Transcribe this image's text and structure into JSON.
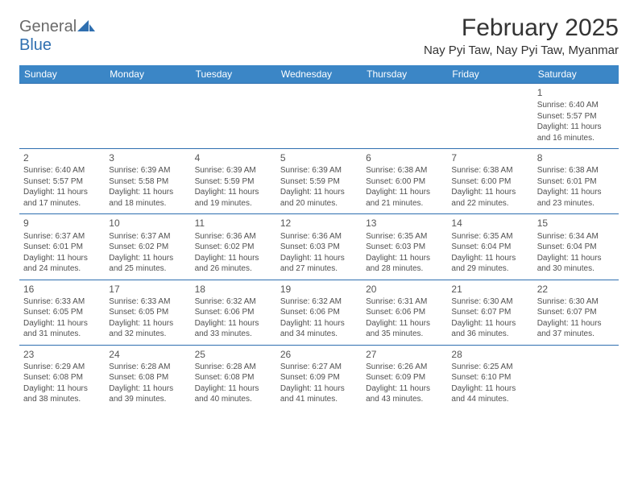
{
  "logo": {
    "general": "General",
    "blue": "Blue",
    "icon_color": "#2f6fb0"
  },
  "header": {
    "month_title": "February 2025",
    "location": "Nay Pyi Taw, Nay Pyi Taw, Myanmar"
  },
  "colors": {
    "header_bg": "#3b86c6",
    "header_text": "#ffffff",
    "row_border": "#2f6fb0",
    "body_text": "#505050"
  },
  "days_of_week": [
    "Sunday",
    "Monday",
    "Tuesday",
    "Wednesday",
    "Thursday",
    "Friday",
    "Saturday"
  ],
  "weeks": [
    [
      null,
      null,
      null,
      null,
      null,
      null,
      {
        "n": "1",
        "sunrise": "Sunrise: 6:40 AM",
        "sunset": "Sunset: 5:57 PM",
        "daylight": "Daylight: 11 hours and 16 minutes."
      }
    ],
    [
      {
        "n": "2",
        "sunrise": "Sunrise: 6:40 AM",
        "sunset": "Sunset: 5:57 PM",
        "daylight": "Daylight: 11 hours and 17 minutes."
      },
      {
        "n": "3",
        "sunrise": "Sunrise: 6:39 AM",
        "sunset": "Sunset: 5:58 PM",
        "daylight": "Daylight: 11 hours and 18 minutes."
      },
      {
        "n": "4",
        "sunrise": "Sunrise: 6:39 AM",
        "sunset": "Sunset: 5:59 PM",
        "daylight": "Daylight: 11 hours and 19 minutes."
      },
      {
        "n": "5",
        "sunrise": "Sunrise: 6:39 AM",
        "sunset": "Sunset: 5:59 PM",
        "daylight": "Daylight: 11 hours and 20 minutes."
      },
      {
        "n": "6",
        "sunrise": "Sunrise: 6:38 AM",
        "sunset": "Sunset: 6:00 PM",
        "daylight": "Daylight: 11 hours and 21 minutes."
      },
      {
        "n": "7",
        "sunrise": "Sunrise: 6:38 AM",
        "sunset": "Sunset: 6:00 PM",
        "daylight": "Daylight: 11 hours and 22 minutes."
      },
      {
        "n": "8",
        "sunrise": "Sunrise: 6:38 AM",
        "sunset": "Sunset: 6:01 PM",
        "daylight": "Daylight: 11 hours and 23 minutes."
      }
    ],
    [
      {
        "n": "9",
        "sunrise": "Sunrise: 6:37 AM",
        "sunset": "Sunset: 6:01 PM",
        "daylight": "Daylight: 11 hours and 24 minutes."
      },
      {
        "n": "10",
        "sunrise": "Sunrise: 6:37 AM",
        "sunset": "Sunset: 6:02 PM",
        "daylight": "Daylight: 11 hours and 25 minutes."
      },
      {
        "n": "11",
        "sunrise": "Sunrise: 6:36 AM",
        "sunset": "Sunset: 6:02 PM",
        "daylight": "Daylight: 11 hours and 26 minutes."
      },
      {
        "n": "12",
        "sunrise": "Sunrise: 6:36 AM",
        "sunset": "Sunset: 6:03 PM",
        "daylight": "Daylight: 11 hours and 27 minutes."
      },
      {
        "n": "13",
        "sunrise": "Sunrise: 6:35 AM",
        "sunset": "Sunset: 6:03 PM",
        "daylight": "Daylight: 11 hours and 28 minutes."
      },
      {
        "n": "14",
        "sunrise": "Sunrise: 6:35 AM",
        "sunset": "Sunset: 6:04 PM",
        "daylight": "Daylight: 11 hours and 29 minutes."
      },
      {
        "n": "15",
        "sunrise": "Sunrise: 6:34 AM",
        "sunset": "Sunset: 6:04 PM",
        "daylight": "Daylight: 11 hours and 30 minutes."
      }
    ],
    [
      {
        "n": "16",
        "sunrise": "Sunrise: 6:33 AM",
        "sunset": "Sunset: 6:05 PM",
        "daylight": "Daylight: 11 hours and 31 minutes."
      },
      {
        "n": "17",
        "sunrise": "Sunrise: 6:33 AM",
        "sunset": "Sunset: 6:05 PM",
        "daylight": "Daylight: 11 hours and 32 minutes."
      },
      {
        "n": "18",
        "sunrise": "Sunrise: 6:32 AM",
        "sunset": "Sunset: 6:06 PM",
        "daylight": "Daylight: 11 hours and 33 minutes."
      },
      {
        "n": "19",
        "sunrise": "Sunrise: 6:32 AM",
        "sunset": "Sunset: 6:06 PM",
        "daylight": "Daylight: 11 hours and 34 minutes."
      },
      {
        "n": "20",
        "sunrise": "Sunrise: 6:31 AM",
        "sunset": "Sunset: 6:06 PM",
        "daylight": "Daylight: 11 hours and 35 minutes."
      },
      {
        "n": "21",
        "sunrise": "Sunrise: 6:30 AM",
        "sunset": "Sunset: 6:07 PM",
        "daylight": "Daylight: 11 hours and 36 minutes."
      },
      {
        "n": "22",
        "sunrise": "Sunrise: 6:30 AM",
        "sunset": "Sunset: 6:07 PM",
        "daylight": "Daylight: 11 hours and 37 minutes."
      }
    ],
    [
      {
        "n": "23",
        "sunrise": "Sunrise: 6:29 AM",
        "sunset": "Sunset: 6:08 PM",
        "daylight": "Daylight: 11 hours and 38 minutes."
      },
      {
        "n": "24",
        "sunrise": "Sunrise: 6:28 AM",
        "sunset": "Sunset: 6:08 PM",
        "daylight": "Daylight: 11 hours and 39 minutes."
      },
      {
        "n": "25",
        "sunrise": "Sunrise: 6:28 AM",
        "sunset": "Sunset: 6:08 PM",
        "daylight": "Daylight: 11 hours and 40 minutes."
      },
      {
        "n": "26",
        "sunrise": "Sunrise: 6:27 AM",
        "sunset": "Sunset: 6:09 PM",
        "daylight": "Daylight: 11 hours and 41 minutes."
      },
      {
        "n": "27",
        "sunrise": "Sunrise: 6:26 AM",
        "sunset": "Sunset: 6:09 PM",
        "daylight": "Daylight: 11 hours and 43 minutes."
      },
      {
        "n": "28",
        "sunrise": "Sunrise: 6:25 AM",
        "sunset": "Sunset: 6:10 PM",
        "daylight": "Daylight: 11 hours and 44 minutes."
      },
      null
    ]
  ]
}
